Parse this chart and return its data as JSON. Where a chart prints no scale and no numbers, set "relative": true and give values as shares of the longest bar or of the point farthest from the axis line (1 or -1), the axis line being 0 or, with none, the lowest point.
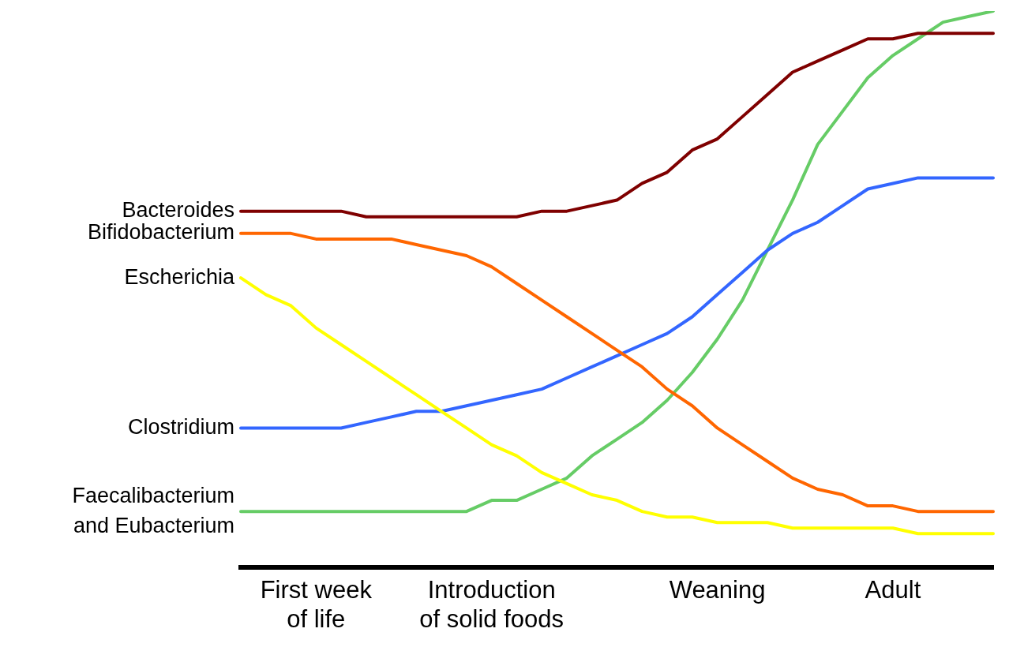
{
  "chart_data": {
    "type": "line",
    "relative": true,
    "legend": false,
    "grid": false,
    "marker": "none",
    "line_style": "solid",
    "tick_labels": "x",
    "categories": [
      null,
      null,
      null,
      "First week\nof life",
      null,
      null,
      null,
      null,
      null,
      null,
      "Introduction\nof solid foods",
      null,
      null,
      null,
      null,
      null,
      null,
      null,
      null,
      "Weaning",
      null,
      null,
      null,
      null,
      null,
      null,
      "Adult",
      null,
      null,
      null,
      null
    ],
    "series": [
      {
        "name": "Bacteroides",
        "color": "#7f0000",
        "values": [
          0.64,
          0.64,
          0.64,
          0.64,
          0.64,
          0.63,
          0.63,
          0.63,
          0.63,
          0.63,
          0.63,
          0.63,
          0.64,
          0.64,
          0.65,
          0.66,
          0.69,
          0.71,
          0.75,
          0.77,
          0.81,
          0.85,
          0.89,
          0.91,
          0.93,
          0.95,
          0.95,
          0.96,
          0.96,
          0.96,
          0.96
        ]
      },
      {
        "name": "Bifidobacterium",
        "color": "#ff6600",
        "values": [
          0.6,
          0.6,
          0.6,
          0.59,
          0.59,
          0.59,
          0.59,
          0.58,
          0.57,
          0.56,
          0.54,
          0.51,
          0.48,
          0.45,
          0.42,
          0.39,
          0.36,
          0.32,
          0.29,
          0.25,
          0.22,
          0.19,
          0.16,
          0.14,
          0.13,
          0.11,
          0.11,
          0.1,
          0.1,
          0.1,
          0.1
        ]
      },
      {
        "name": "Escherichia",
        "color": "#ffff00",
        "values": [
          0.52,
          0.49,
          0.47,
          0.43,
          0.4,
          0.37,
          0.34,
          0.31,
          0.28,
          0.25,
          0.22,
          0.2,
          0.17,
          0.15,
          0.13,
          0.12,
          0.1,
          0.09,
          0.09,
          0.08,
          0.08,
          0.08,
          0.07,
          0.07,
          0.07,
          0.07,
          0.07,
          0.06,
          0.06,
          0.06,
          0.06
        ]
      },
      {
        "name": "Clostridium",
        "color": "#3366ff",
        "values": [
          0.25,
          0.25,
          0.25,
          0.25,
          0.25,
          0.26,
          0.27,
          0.28,
          0.28,
          0.29,
          0.3,
          0.31,
          0.32,
          0.34,
          0.36,
          0.38,
          0.4,
          0.42,
          0.45,
          0.49,
          0.53,
          0.57,
          0.6,
          0.62,
          0.65,
          0.68,
          0.69,
          0.7,
          0.7,
          0.7,
          0.7
        ]
      },
      {
        "name": "Faecalibacterium\nand Eubacterium",
        "color": "#66cc66",
        "values": [
          0.1,
          0.1,
          0.1,
          0.1,
          0.1,
          0.1,
          0.1,
          0.1,
          0.1,
          0.1,
          0.12,
          0.12,
          0.14,
          0.16,
          0.2,
          0.23,
          0.26,
          0.3,
          0.35,
          0.41,
          0.48,
          0.57,
          0.66,
          0.76,
          0.82,
          0.88,
          0.92,
          0.95,
          0.98,
          0.99,
          1
        ]
      }
    ]
  }
}
